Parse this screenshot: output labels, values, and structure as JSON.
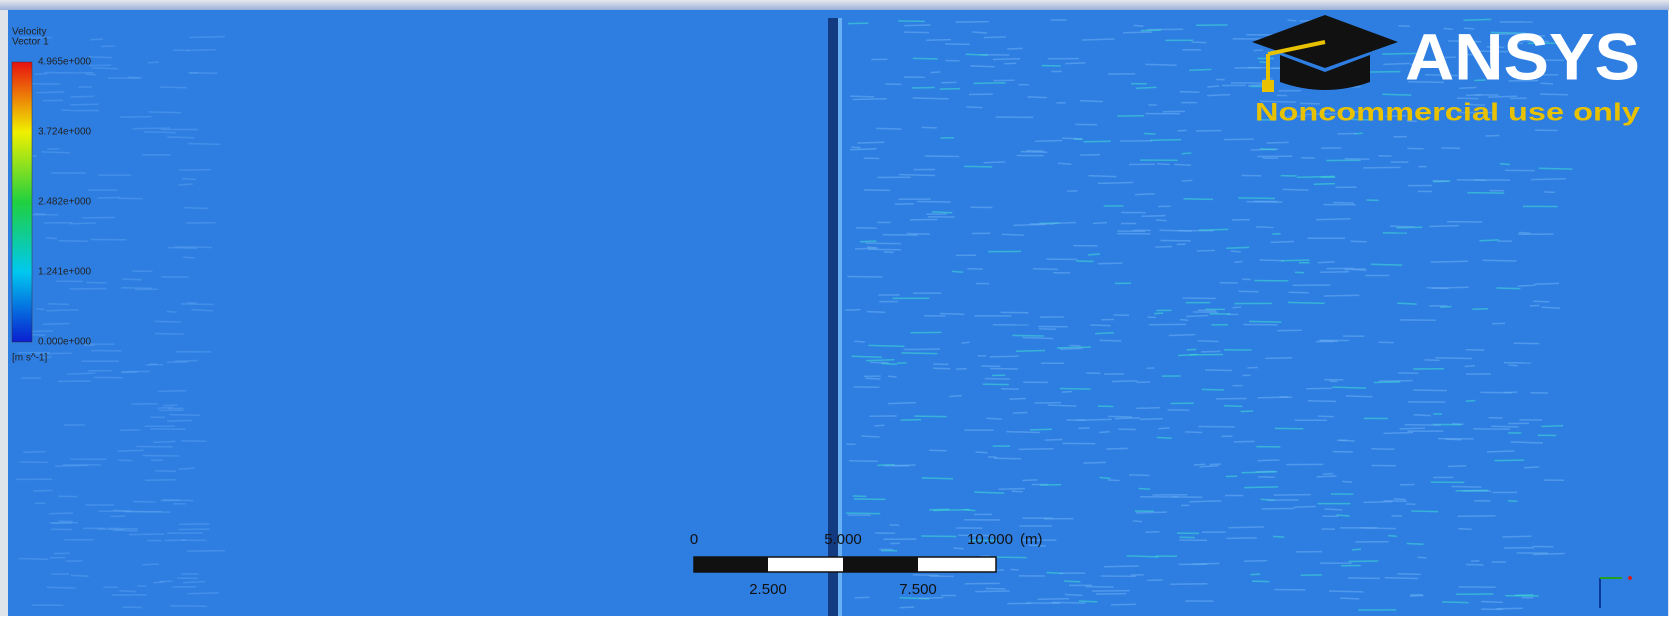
{
  "legend": {
    "title": "Velocity",
    "subtitle": "Vector 1",
    "ticks": [
      "4.965e+000",
      "3.724e+000",
      "2.482e+000",
      "1.241e+000",
      "0.000e+000"
    ],
    "unit": "[m s^-1]"
  },
  "logo": {
    "brand": "ANSYS",
    "note": "Noncommercial use only"
  },
  "scale_bar": {
    "top_labels": [
      "0",
      "5.000",
      "10.000"
    ],
    "unit": "(m)",
    "bottom_labels": [
      "2.500",
      "7.500"
    ]
  }
}
